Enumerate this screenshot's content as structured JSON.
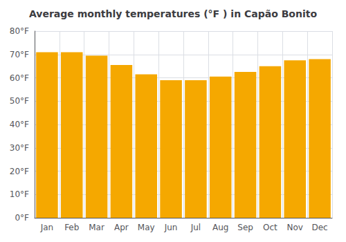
{
  "chart_data": {
    "type": "bar",
    "title": "Average monthly temperatures (°F ) in Capão Bonito",
    "categories": [
      "Jan",
      "Feb",
      "Mar",
      "Apr",
      "May",
      "Jun",
      "Jul",
      "Aug",
      "Sep",
      "Oct",
      "Nov",
      "Dec"
    ],
    "values": [
      71.0,
      71.0,
      69.5,
      65.5,
      61.5,
      59.0,
      59.0,
      60.5,
      62.5,
      65.0,
      67.5,
      68.0
    ],
    "color": "#F5A800",
    "ylim": [
      0,
      80
    ],
    "yticks": [
      {
        "value": 0,
        "label": "0°F"
      },
      {
        "value": 10,
        "label": "10°F"
      },
      {
        "value": 20,
        "label": "20°F"
      },
      {
        "value": 30,
        "label": "30°F"
      },
      {
        "value": 40,
        "label": "40°F"
      },
      {
        "value": 50,
        "label": "50°F"
      },
      {
        "value": 60,
        "label": "60°F"
      },
      {
        "value": 70,
        "label": "70°F"
      },
      {
        "value": 80,
        "label": "80°F"
      }
    ],
    "grid": true
  }
}
